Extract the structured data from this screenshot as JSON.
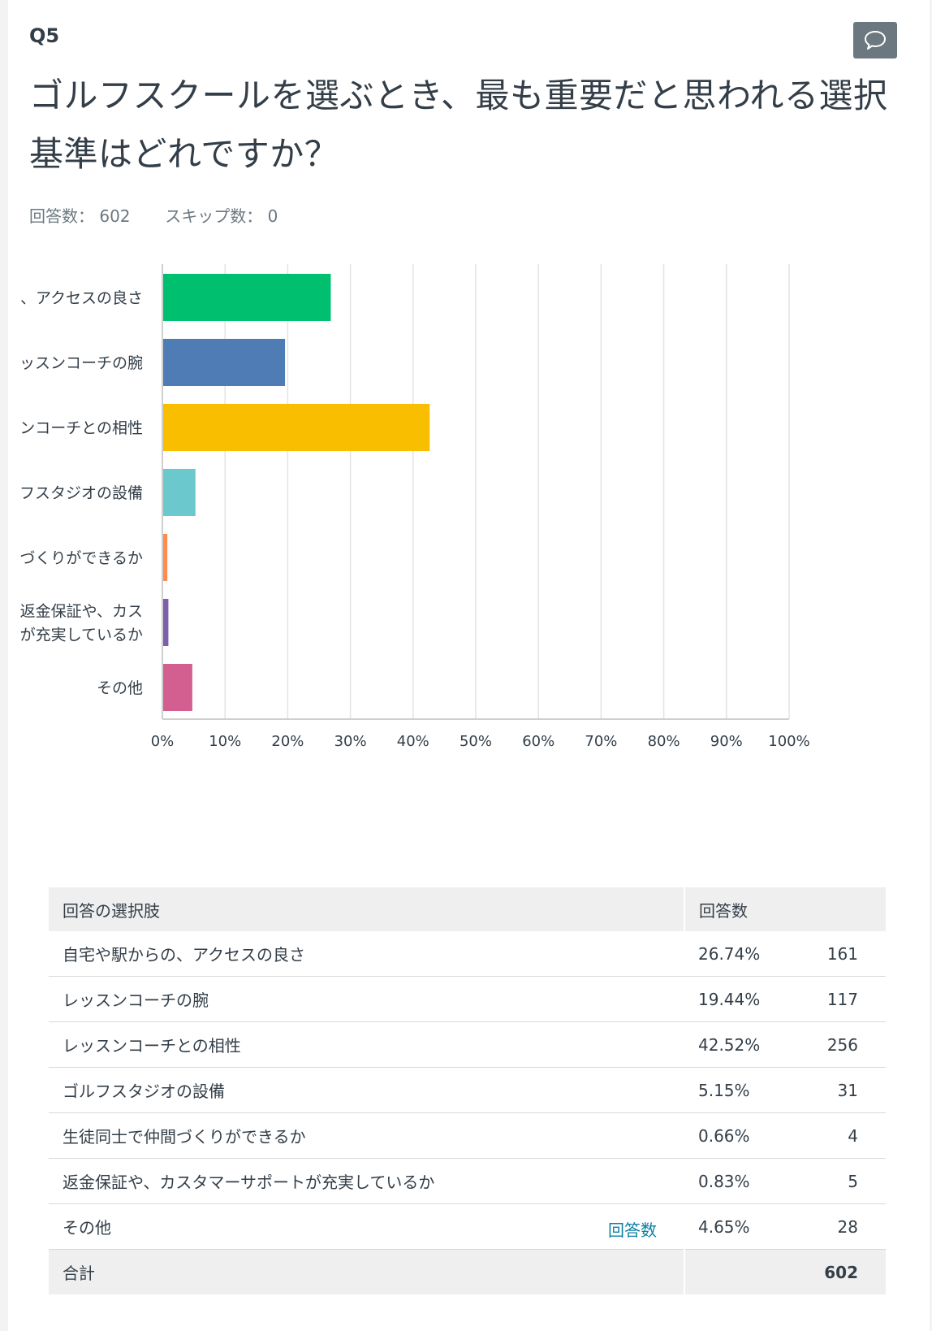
{
  "question": {
    "number": "Q5",
    "title": "ゴルフスクールを選ぶとき、最も重要だと思われる選択基準はどれですか？",
    "answered_label": "回答数：",
    "answered": "602",
    "skipped_label": "スキップ数：",
    "skipped": "0",
    "comment_icon": "speech-bubble-icon"
  },
  "chart_data": {
    "type": "bar",
    "orientation": "horizontal",
    "categories": [
      "、アクセスの良さ",
      "ッスンコーチの腕",
      "ンコーチとの相性",
      "フスタジオの設備",
      "づくりができるか",
      "返金保証や、カス\nが充実しているか",
      "その他"
    ],
    "values": [
      26.74,
      19.44,
      42.52,
      5.15,
      0.66,
      0.83,
      4.65
    ],
    "colors": [
      "#00bf6f",
      "#507cb6",
      "#f9be00",
      "#6bc8cd",
      "#ff8b4f",
      "#7f5fa9",
      "#d25f90"
    ],
    "xlim": [
      0,
      100
    ],
    "xticks": [
      "0%",
      "10%",
      "20%",
      "30%",
      "40%",
      "50%",
      "60%",
      "70%",
      "80%",
      "90%",
      "100%"
    ],
    "grid": true
  },
  "table": {
    "header": {
      "choice": "回答の選択肢",
      "responses": "回答数"
    },
    "rows": [
      {
        "label": "自宅や駅からの、アクセスの良さ",
        "pct": "26.74%",
        "count": "161"
      },
      {
        "label": "レッスンコーチの腕",
        "pct": "19.44%",
        "count": "117"
      },
      {
        "label": "レッスンコーチとの相性",
        "pct": "42.52%",
        "count": "256"
      },
      {
        "label": "ゴルフスタジオの設備",
        "pct": "5.15%",
        "count": "31"
      },
      {
        "label": "生徒同士で仲間づくりができるか",
        "pct": "0.66%",
        "count": "4"
      },
      {
        "label": "返金保証や、カスタマーサポートが充実しているか",
        "pct": "0.83%",
        "count": "5"
      },
      {
        "label": "その他",
        "link": "回答数",
        "pct": "4.65%",
        "count": "28"
      }
    ],
    "total_label": "合計",
    "total": "602"
  }
}
